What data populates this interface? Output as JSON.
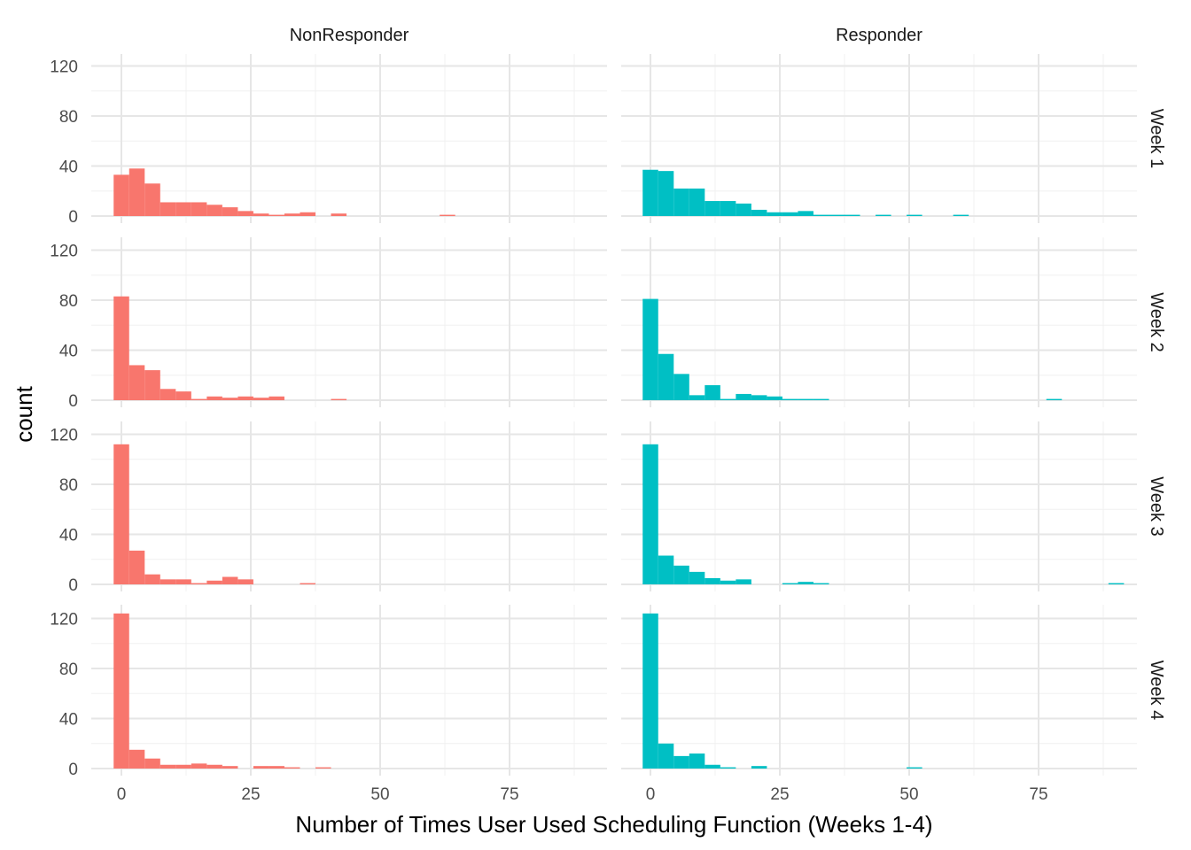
{
  "chart_data": {
    "type": "bar",
    "subtype": "faceted-histogram",
    "xlabel": "Number of Times User Used Scheduling Function (Weeks 1-4)",
    "ylabel": "count",
    "xlim": [
      -2.3,
      93.2
    ],
    "ylim": [
      0,
      132
    ],
    "x_ticks": [
      0,
      25,
      50,
      75
    ],
    "y_ticks": [
      0,
      40,
      80,
      120
    ],
    "grid": true,
    "bin_width": 3,
    "bin_start": -1.5,
    "columns": [
      {
        "label": "NonResponder",
        "color": "#F8766D"
      },
      {
        "label": "Responder",
        "color": "#00BFC4"
      }
    ],
    "rows": [
      {
        "label": "Week 1"
      },
      {
        "label": "Week 2"
      },
      {
        "label": "Week 3"
      },
      {
        "label": "Week 4"
      }
    ],
    "panels": [
      [
        {
          "counts": [
            33,
            38,
            26,
            11,
            11,
            11,
            9,
            7,
            4,
            2,
            1,
            2,
            3,
            0,
            2,
            0,
            0,
            0,
            0,
            0,
            0,
            1,
            0
          ]
        },
        {
          "counts": [
            37,
            36,
            22,
            22,
            12,
            12,
            10,
            5,
            3,
            3,
            4,
            1,
            1,
            1,
            0,
            1,
            0,
            1,
            0,
            0,
            1
          ]
        }
      ],
      [
        {
          "counts": [
            83,
            28,
            24,
            9,
            7,
            1,
            3,
            2,
            3,
            2,
            3,
            0,
            0,
            0,
            1
          ]
        },
        {
          "counts": [
            81,
            37,
            21,
            4,
            12,
            1,
            5,
            4,
            3,
            1,
            1,
            1,
            0,
            0,
            0,
            0,
            0,
            0,
            0,
            0,
            0,
            0,
            0,
            0,
            0,
            0,
            1
          ]
        }
      ],
      [
        {
          "counts": [
            112,
            27,
            8,
            4,
            4,
            1,
            3,
            6,
            4,
            0,
            0,
            0,
            1
          ]
        },
        {
          "counts": [
            112,
            23,
            15,
            10,
            5,
            3,
            4,
            0,
            0,
            1,
            2,
            1,
            0,
            0,
            0,
            0,
            0,
            0,
            0,
            0,
            0,
            0,
            0,
            0,
            0,
            0,
            0,
            0,
            0,
            0,
            1
          ]
        }
      ],
      [
        {
          "counts": [
            124,
            15,
            8,
            3,
            3,
            4,
            3,
            2,
            0,
            2,
            2,
            1,
            0,
            1
          ]
        },
        {
          "counts": [
            124,
            20,
            10,
            12,
            3,
            1,
            0,
            2,
            0,
            0,
            0,
            0,
            0,
            0,
            0,
            0,
            0,
            1
          ]
        }
      ]
    ]
  }
}
